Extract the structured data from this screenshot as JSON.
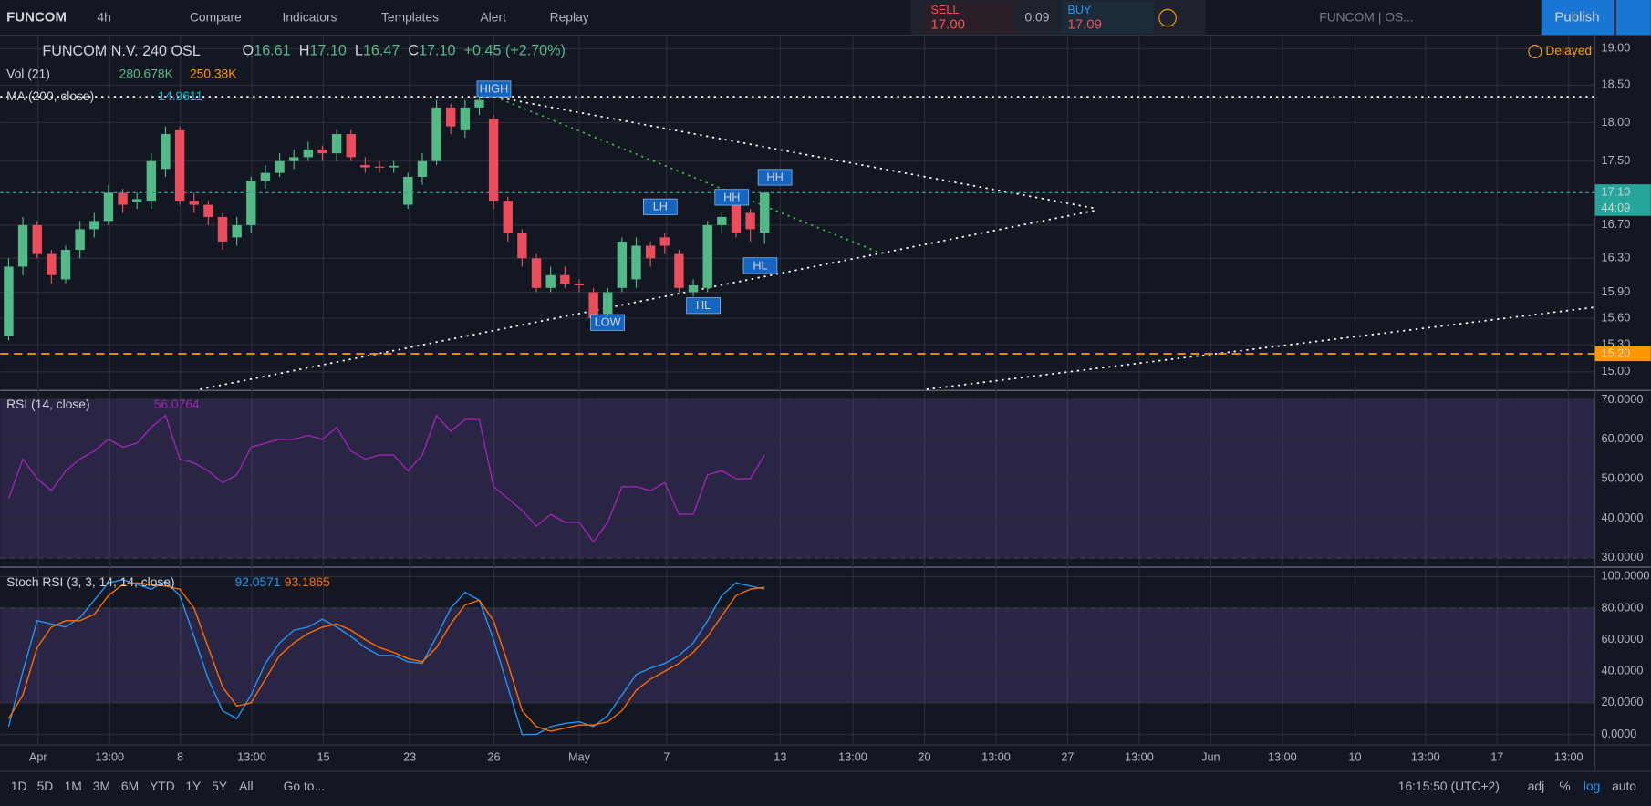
{
  "toolbar": {
    "symbol": "FUNCOM",
    "interval": "4h",
    "items": [
      "Compare",
      "Indicators",
      "Templates",
      "Alert",
      "Replay"
    ],
    "sell_label": "SELL",
    "sell_price": "17.00",
    "spread": "0.09",
    "buy_label": "BUY",
    "buy_price": "17.09",
    "layout": "FUNCOM | OS...",
    "publish": "Publish"
  },
  "legend": {
    "name": "FUNCOM N.V. 240 OSL",
    "ohlc": [
      {
        "key": "O",
        "value": "16.61"
      },
      {
        "key": "H",
        "value": "17.10"
      },
      {
        "key": "L",
        "value": "16.47"
      },
      {
        "key": "C",
        "value": "17.10"
      }
    ],
    "change": "+0.45 (+2.70%)",
    "volume": "Vol (21)",
    "volume_values": [
      "280.678K",
      "250.38K"
    ],
    "ma": "MA (200, close)",
    "ma_value": "14.9611",
    "delayed": "Delayed"
  },
  "chart_data": [
    {
      "type": "candlestick",
      "log": true,
      "ylim": [
        14.81,
        19.18
      ],
      "yticks": [
        {
          "value": 19,
          "label": "19.00"
        },
        {
          "value": 18.5,
          "label": "18.50"
        },
        {
          "value": 18,
          "label": "18.00"
        },
        {
          "value": 17.5,
          "label": "17.50"
        },
        {
          "value": 16.7,
          "label": "16.70"
        },
        {
          "value": 16.3,
          "label": "16.30"
        },
        {
          "value": 15.9,
          "label": "15.90"
        },
        {
          "value": 15.6,
          "label": "15.60"
        },
        {
          "value": 15.3,
          "label": "15.30"
        },
        {
          "value": 15,
          "label": "15.00"
        }
      ],
      "last_price": {
        "value": 17.1,
        "label": "17.10"
      },
      "countdown": "44:09",
      "alert_line": {
        "value": 15.2,
        "label": "15.20"
      },
      "annotations": [
        "HIGH",
        "HH",
        "HH",
        "LH",
        "HL",
        "HL",
        "LOW"
      ],
      "x_labels": [
        "Apr",
        "13:00",
        "8",
        "13:00",
        "15",
        "23",
        "26",
        "May",
        "7",
        "13",
        "13:00",
        "20",
        "13:00",
        "27",
        "13:00",
        "Jun",
        "13:00",
        "10",
        "13:00",
        "17",
        "13:00"
      ],
      "open": [
        15.4,
        16.2,
        16.7,
        16.35,
        16.05,
        16.4,
        16.65,
        16.75,
        17.1,
        16.98,
        17.0,
        17.4,
        17.9,
        17.0,
        16.95,
        16.8,
        16.55,
        16.7,
        17.25,
        17.35,
        17.5,
        17.55,
        17.65,
        17.6,
        17.85,
        17.45,
        17.43,
        17.42,
        16.95,
        17.3,
        17.5,
        18.2,
        17.9,
        18.2,
        18.05,
        17.0,
        16.6,
        16.3,
        15.95,
        16.1,
        16.0,
        15.9,
        15.65,
        15.95,
        16.05,
        16.45,
        16.55,
        16.35,
        15.9,
        15.95,
        16.7,
        16.95,
        16.85,
        16.61
      ],
      "high": [
        16.3,
        16.8,
        16.75,
        16.4,
        16.45,
        16.75,
        16.85,
        17.2,
        17.15,
        17.1,
        17.6,
        17.95,
        17.95,
        17.1,
        17.0,
        16.85,
        16.8,
        17.3,
        17.45,
        17.6,
        17.65,
        17.75,
        17.7,
        17.9,
        17.9,
        17.55,
        17.5,
        17.5,
        17.35,
        17.6,
        18.3,
        18.25,
        18.3,
        18.4,
        18.1,
        17.05,
        16.65,
        16.35,
        16.2,
        16.2,
        16.05,
        15.95,
        15.95,
        16.55,
        16.55,
        16.5,
        16.6,
        16.4,
        16.05,
        16.75,
        16.85,
        17.0,
        16.9,
        17.1
      ],
      "low": [
        15.35,
        16.1,
        16.3,
        16.0,
        16.0,
        16.3,
        16.55,
        16.7,
        16.85,
        16.9,
        16.9,
        17.3,
        16.95,
        16.85,
        16.7,
        16.4,
        16.45,
        16.6,
        17.15,
        17.3,
        17.4,
        17.5,
        17.5,
        17.5,
        17.5,
        17.35,
        17.35,
        17.35,
        16.9,
        17.2,
        17.45,
        17.85,
        17.8,
        18.1,
        16.9,
        16.5,
        16.2,
        15.9,
        15.9,
        15.95,
        15.9,
        15.55,
        15.6,
        15.9,
        15.95,
        16.2,
        16.35,
        15.9,
        15.85,
        15.9,
        16.6,
        16.55,
        16.5,
        16.47
      ],
      "close": [
        16.2,
        16.7,
        16.35,
        16.1,
        16.4,
        16.65,
        16.75,
        17.1,
        16.95,
        17.02,
        17.5,
        17.85,
        17.0,
        16.95,
        16.8,
        16.5,
        16.7,
        17.25,
        17.35,
        17.5,
        17.55,
        17.65,
        17.6,
        17.85,
        17.55,
        17.42,
        17.42,
        17.44,
        17.3,
        17.5,
        18.2,
        17.95,
        18.2,
        18.3,
        17.0,
        16.6,
        16.3,
        15.95,
        16.1,
        16.0,
        15.98,
        15.6,
        15.9,
        16.5,
        16.45,
        16.3,
        16.45,
        15.95,
        15.98,
        16.7,
        16.8,
        16.6,
        16.65,
        17.1
      ],
      "up_color": "#53b987",
      "down_color": "#eb4d5c"
    },
    {
      "type": "line",
      "title": "RSI (14, close)",
      "value_label": "56.0764",
      "ylim": [
        27.9,
        72.1
      ],
      "band": [
        30,
        70
      ],
      "yticks": [
        {
          "value": 70,
          "label": "70.0000"
        },
        {
          "value": 60,
          "label": "60.0000"
        },
        {
          "value": 50,
          "label": "50.0000"
        },
        {
          "value": 40,
          "label": "40.0000"
        },
        {
          "value": 30,
          "label": "30.0000"
        }
      ],
      "series": [
        {
          "name": "RSI",
          "color": "#9c27b0",
          "values": [
            45,
            55,
            50,
            47,
            52,
            55,
            57,
            60,
            58,
            59,
            63,
            66,
            55,
            54,
            52,
            49,
            51,
            58,
            59,
            60,
            60,
            61,
            60,
            63,
            57,
            55,
            56,
            56,
            52,
            56,
            66,
            62,
            65,
            65,
            48,
            45,
            42,
            38,
            41,
            39,
            39,
            34,
            39,
            48,
            48,
            47,
            49,
            41,
            41,
            51,
            52,
            50,
            50,
            56.0764
          ]
        }
      ]
    },
    {
      "type": "line",
      "title": "Stoch RSI (3, 3, 14, 14, close)",
      "value_labels": [
        "92.0571",
        "93.1865"
      ],
      "ylim": [
        -6,
        105.3
      ],
      "band": [
        20,
        80
      ],
      "yticks": [
        {
          "value": 100,
          "label": "100.0000"
        },
        {
          "value": 80,
          "label": "80.0000"
        },
        {
          "value": 60,
          "label": "60.0000"
        },
        {
          "value": 40,
          "label": "40.0000"
        },
        {
          "value": 20,
          "label": "20.0000"
        },
        {
          "value": 0,
          "label": "0.0000"
        }
      ],
      "series": [
        {
          "name": "K",
          "color": "#2196f3",
          "values": [
            5,
            40,
            72,
            70,
            68,
            74,
            85,
            96,
            98,
            95,
            92,
            97,
            88,
            62,
            35,
            15,
            10,
            25,
            45,
            58,
            66,
            68,
            73,
            68,
            62,
            55,
            50,
            50,
            46,
            45,
            62,
            80,
            90,
            85,
            60,
            30,
            0,
            0,
            5,
            7,
            8,
            5,
            12,
            25,
            38,
            42,
            45,
            50,
            58,
            72,
            88,
            96,
            94,
            92.0571
          ]
        },
        {
          "name": "D",
          "color": "#ff6d00",
          "values": [
            10,
            25,
            55,
            68,
            72,
            72,
            76,
            88,
            95,
            96,
            95,
            94,
            92,
            80,
            55,
            30,
            18,
            20,
            35,
            50,
            58,
            64,
            68,
            70,
            66,
            60,
            55,
            52,
            48,
            46,
            55,
            70,
            82,
            85,
            72,
            45,
            15,
            5,
            2,
            4,
            6,
            6,
            8,
            15,
            28,
            35,
            40,
            45,
            52,
            62,
            75,
            88,
            92,
            93.1865
          ]
        }
      ]
    }
  ],
  "bottom": {
    "ranges": [
      "1D",
      "5D",
      "1M",
      "3M",
      "6M",
      "YTD",
      "1Y",
      "5Y",
      "All"
    ],
    "goto": "Go to...",
    "clock": "16:15:50 (UTC+2)",
    "options": [
      "adj",
      "%",
      "log",
      "auto"
    ]
  }
}
